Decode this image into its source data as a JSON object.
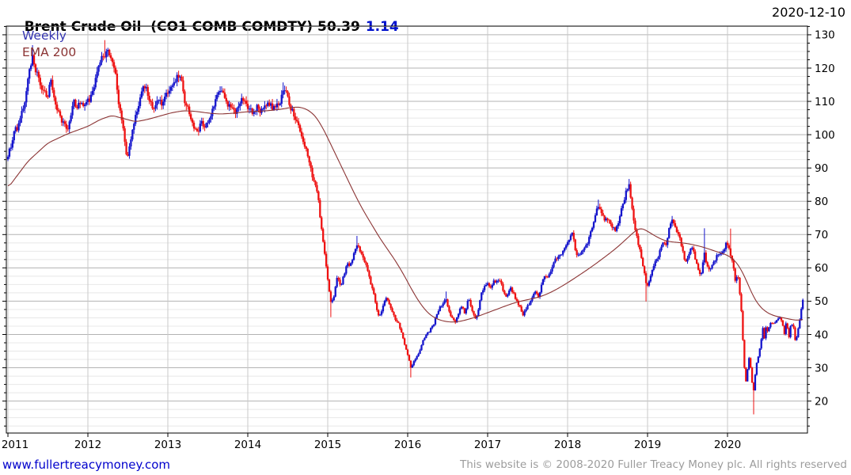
{
  "header": {
    "title": "Brent Crude Oil  (CO1 COMB COMDTY)",
    "price": "50.39",
    "change": "1.14",
    "date": "2020-12-10"
  },
  "legend": {
    "interval": "Weekly",
    "overlay": "EMA 200"
  },
  "footer": {
    "site": "www.fullertreacymoney.com",
    "copyright": "This website is © 2008-2020 Fuller Treacy Money plc. All rights reserved"
  },
  "colors": {
    "background": "#ffffff",
    "up_candle": "#1414cc",
    "down_candle": "#ee1111",
    "ema_line": "#8b3434",
    "grid_major": "#b3b3b3",
    "grid_minor": "#e8e8e8",
    "grid_year": "#c9c9c9",
    "axis_frame": "#000000",
    "tick_label": "#000000",
    "title_text": "#000000",
    "change_text": "#0011cc",
    "legend_weekly": "#3535b2",
    "legend_ema": "#8b3434",
    "link_text": "#0000cc",
    "copyright_text": "#9c9c9c"
  },
  "chart_data": {
    "type": "candlestick",
    "title": "Brent Crude Oil (CO1 COMB COMDTY)",
    "interval": "Weekly",
    "overlay": "EMA 200",
    "as_of_date": "2020-12-10",
    "last_close": 50.39,
    "change": 1.14,
    "xlabel": "",
    "ylabel": "",
    "x_ticks": [
      2011,
      2012,
      2013,
      2014,
      2015,
      2016,
      2017,
      2018,
      2019,
      2020
    ],
    "y_ticks": [
      20,
      30,
      40,
      50,
      60,
      70,
      80,
      90,
      100,
      110,
      120,
      130
    ],
    "y_minor_step": 2.5,
    "x_domain": [
      2010.98,
      2021.0
    ],
    "y_domain": [
      10.4,
      132.6
    ],
    "weeks_per_year": 52,
    "series_start": 2011.0,
    "series_end": 2020.945,
    "close_anchors": [
      [
        2011.0,
        93.5
      ],
      [
        2011.04,
        97
      ],
      [
        2011.08,
        100
      ],
      [
        2011.12,
        101.5
      ],
      [
        2011.16,
        103.5
      ],
      [
        2011.2,
        108
      ],
      [
        2011.24,
        114
      ],
      [
        2011.28,
        120
      ],
      [
        2011.31,
        123.5
      ],
      [
        2011.34,
        121
      ],
      [
        2011.38,
        117
      ],
      [
        2011.42,
        112.5
      ],
      [
        2011.46,
        114.5
      ],
      [
        2011.5,
        112
      ],
      [
        2011.54,
        116.5
      ],
      [
        2011.58,
        112
      ],
      [
        2011.62,
        108
      ],
      [
        2011.66,
        106
      ],
      [
        2011.7,
        104
      ],
      [
        2011.74,
        100.5
      ],
      [
        2011.78,
        104
      ],
      [
        2011.82,
        109
      ],
      [
        2011.86,
        106
      ],
      [
        2011.9,
        108.5
      ],
      [
        2011.94,
        107
      ],
      [
        2011.98,
        107.8
      ],
      [
        2012.02,
        110
      ],
      [
        2012.06,
        113
      ],
      [
        2012.1,
        117.5
      ],
      [
        2012.14,
        120
      ],
      [
        2012.18,
        123
      ],
      [
        2012.22,
        125.3
      ],
      [
        2012.26,
        123.5
      ],
      [
        2012.3,
        121
      ],
      [
        2012.34,
        118.5
      ],
      [
        2012.38,
        110
      ],
      [
        2012.42,
        104
      ],
      [
        2012.46,
        97
      ],
      [
        2012.49,
        91.5
      ],
      [
        2012.53,
        97.5
      ],
      [
        2012.57,
        102
      ],
      [
        2012.61,
        107
      ],
      [
        2012.65,
        112.5
      ],
      [
        2012.69,
        115
      ],
      [
        2012.73,
        114
      ],
      [
        2012.77,
        111.5
      ],
      [
        2012.81,
        109
      ],
      [
        2012.85,
        108.5
      ],
      [
        2012.89,
        110.5
      ],
      [
        2012.93,
        109.5
      ],
      [
        2012.97,
        110
      ],
      [
        2013.01,
        111.5
      ],
      [
        2013.05,
        114
      ],
      [
        2013.09,
        117
      ],
      [
        2013.13,
        118.3
      ],
      [
        2013.17,
        115.5
      ],
      [
        2013.21,
        110
      ],
      [
        2013.25,
        107.5
      ],
      [
        2013.29,
        104
      ],
      [
        2013.33,
        99.5
      ],
      [
        2013.37,
        101
      ],
      [
        2013.41,
        103.5
      ],
      [
        2013.45,
        101
      ],
      [
        2013.49,
        103
      ],
      [
        2013.53,
        106
      ],
      [
        2013.57,
        108
      ],
      [
        2013.61,
        110
      ],
      [
        2013.65,
        113.5
      ],
      [
        2013.69,
        115
      ],
      [
        2013.73,
        110.5
      ],
      [
        2013.77,
        108.5
      ],
      [
        2013.81,
        106.5
      ],
      [
        2013.85,
        105.5
      ],
      [
        2013.89,
        107.5
      ],
      [
        2013.93,
        110
      ],
      [
        2013.97,
        111
      ],
      [
        2014.01,
        107.5
      ],
      [
        2014.05,
        106.5
      ],
      [
        2014.09,
        109
      ],
      [
        2014.13,
        108.5
      ],
      [
        2014.17,
        107
      ],
      [
        2014.21,
        107.5
      ],
      [
        2014.25,
        109.5
      ],
      [
        2014.29,
        108
      ],
      [
        2014.33,
        107.5
      ],
      [
        2014.37,
        109.5
      ],
      [
        2014.41,
        111
      ],
      [
        2014.45,
        113
      ],
      [
        2014.49,
        111.5
      ],
      [
        2014.53,
        109
      ],
      [
        2014.57,
        106.5
      ],
      [
        2014.61,
        103
      ],
      [
        2014.65,
        101.5
      ],
      [
        2014.69,
        98.5
      ],
      [
        2014.73,
        95.5
      ],
      [
        2014.77,
        92.5
      ],
      [
        2014.81,
        88
      ],
      [
        2014.85,
        83.5
      ],
      [
        2014.89,
        78
      ],
      [
        2014.93,
        70
      ],
      [
        2014.97,
        61.5
      ],
      [
        2015.01,
        53
      ],
      [
        2015.04,
        49
      ],
      [
        2015.08,
        51
      ],
      [
        2015.12,
        57.5
      ],
      [
        2015.16,
        54.5
      ],
      [
        2015.2,
        58
      ],
      [
        2015.24,
        61
      ],
      [
        2015.28,
        60
      ],
      [
        2015.32,
        63.5
      ],
      [
        2015.36,
        66
      ],
      [
        2015.4,
        64.5
      ],
      [
        2015.44,
        62.5
      ],
      [
        2015.48,
        61
      ],
      [
        2015.52,
        57
      ],
      [
        2015.56,
        53.5
      ],
      [
        2015.6,
        49
      ],
      [
        2015.64,
        44.8
      ],
      [
        2015.68,
        47.5
      ],
      [
        2015.72,
        51.5
      ],
      [
        2015.76,
        49
      ],
      [
        2015.8,
        47.5
      ],
      [
        2015.84,
        44.5
      ],
      [
        2015.88,
        43.5
      ],
      [
        2015.92,
        41
      ],
      [
        2015.96,
        37.5
      ],
      [
        2016.0,
        34
      ],
      [
        2016.04,
        29.5
      ],
      [
        2016.08,
        32.5
      ],
      [
        2016.12,
        34
      ],
      [
        2016.16,
        35.5
      ],
      [
        2016.2,
        38.5
      ],
      [
        2016.24,
        40
      ],
      [
        2016.28,
        41.5
      ],
      [
        2016.32,
        43
      ],
      [
        2016.36,
        45.5
      ],
      [
        2016.4,
        47.5
      ],
      [
        2016.44,
        49.5
      ],
      [
        2016.48,
        50
      ],
      [
        2016.52,
        47
      ],
      [
        2016.56,
        44.5
      ],
      [
        2016.6,
        42.5
      ],
      [
        2016.64,
        46.5
      ],
      [
        2016.68,
        49
      ],
      [
        2016.72,
        46.5
      ],
      [
        2016.76,
        50.5
      ],
      [
        2016.8,
        48
      ],
      [
        2016.84,
        45
      ],
      [
        2016.88,
        46.5
      ],
      [
        2016.92,
        52
      ],
      [
        2016.96,
        54.5
      ],
      [
        2017.0,
        56.5
      ],
      [
        2017.04,
        55
      ],
      [
        2017.08,
        56
      ],
      [
        2017.12,
        55.5
      ],
      [
        2017.16,
        56
      ],
      [
        2017.2,
        52
      ],
      [
        2017.24,
        51
      ],
      [
        2017.28,
        54.5
      ],
      [
        2017.32,
        52.5
      ],
      [
        2017.36,
        50
      ],
      [
        2017.4,
        48.5
      ],
      [
        2017.44,
        46
      ],
      [
        2017.48,
        47.5
      ],
      [
        2017.52,
        49
      ],
      [
        2017.56,
        51.5
      ],
      [
        2017.6,
        52.5
      ],
      [
        2017.64,
        51.5
      ],
      [
        2017.68,
        55
      ],
      [
        2017.72,
        57
      ],
      [
        2017.76,
        56.5
      ],
      [
        2017.8,
        59
      ],
      [
        2017.84,
        61.5
      ],
      [
        2017.88,
        63
      ],
      [
        2017.92,
        63.5
      ],
      [
        2017.96,
        64.5
      ],
      [
        2018.0,
        67
      ],
      [
        2018.04,
        69
      ],
      [
        2018.07,
        70
      ],
      [
        2018.11,
        63
      ],
      [
        2018.15,
        64
      ],
      [
        2018.19,
        66
      ],
      [
        2018.23,
        67.5
      ],
      [
        2018.27,
        69.5
      ],
      [
        2018.31,
        72
      ],
      [
        2018.35,
        75.5
      ],
      [
        2018.39,
        78.5
      ],
      [
        2018.43,
        76.5
      ],
      [
        2018.47,
        74.5
      ],
      [
        2018.51,
        75.5
      ],
      [
        2018.55,
        73.5
      ],
      [
        2018.59,
        71.5
      ],
      [
        2018.63,
        74
      ],
      [
        2018.67,
        77
      ],
      [
        2018.71,
        79
      ],
      [
        2018.74,
        82.5
      ],
      [
        2018.77,
        84
      ],
      [
        2018.81,
        77.5
      ],
      [
        2018.85,
        72
      ],
      [
        2018.89,
        67
      ],
      [
        2018.93,
        62
      ],
      [
        2018.96,
        58
      ],
      [
        2018.99,
        53.5
      ],
      [
        2019.03,
        57.5
      ],
      [
        2019.07,
        61
      ],
      [
        2019.11,
        62
      ],
      [
        2019.15,
        64.5
      ],
      [
        2019.19,
        66.5
      ],
      [
        2019.23,
        67
      ],
      [
        2019.27,
        71.5
      ],
      [
        2019.31,
        74
      ],
      [
        2019.35,
        72
      ],
      [
        2019.39,
        70.5
      ],
      [
        2019.43,
        66
      ],
      [
        2019.47,
        62
      ],
      [
        2019.51,
        64.5
      ],
      [
        2019.55,
        66.5
      ],
      [
        2019.59,
        63
      ],
      [
        2019.63,
        59.5
      ],
      [
        2019.67,
        58
      ],
      [
        2019.71,
        64.5
      ],
      [
        2019.75,
        60
      ],
      [
        2019.79,
        59
      ],
      [
        2019.83,
        62
      ],
      [
        2019.87,
        63.5
      ],
      [
        2019.91,
        64
      ],
      [
        2019.95,
        66.5
      ],
      [
        2019.99,
        68
      ],
      [
        2020.03,
        65
      ],
      [
        2020.07,
        60.5
      ],
      [
        2020.1,
        54.5
      ],
      [
        2020.13,
        57.5
      ],
      [
        2020.16,
        50.5
      ],
      [
        2020.18,
        45.3
      ],
      [
        2020.2,
        33.8
      ],
      [
        2020.22,
        27
      ],
      [
        2020.24,
        24.9
      ],
      [
        2020.26,
        34.1
      ],
      [
        2020.28,
        31.5
      ],
      [
        2020.3,
        28.1
      ],
      [
        2020.32,
        21.4
      ],
      [
        2020.34,
        26.4
      ],
      [
        2020.36,
        30.9
      ],
      [
        2020.38,
        32.5
      ],
      [
        2020.4,
        35.1
      ],
      [
        2020.42,
        37.8
      ],
      [
        2020.44,
        42.3
      ],
      [
        2020.46,
        38.7
      ],
      [
        2020.48,
        42.2
      ],
      [
        2020.5,
        41
      ],
      [
        2020.54,
        43.4
      ],
      [
        2020.58,
        43.3
      ],
      [
        2020.62,
        44.4
      ],
      [
        2020.66,
        45.1
      ],
      [
        2020.69,
        42.7
      ],
      [
        2020.71,
        39.8
      ],
      [
        2020.73,
        43.2
      ],
      [
        2020.75,
        41.9
      ],
      [
        2020.77,
        39.3
      ],
      [
        2020.79,
        42.9
      ],
      [
        2020.81,
        42.9
      ],
      [
        2020.83,
        41.8
      ],
      [
        2020.85,
        37.5
      ],
      [
        2020.87,
        39.5
      ],
      [
        2020.89,
        42.8
      ],
      [
        2020.91,
        45
      ],
      [
        2020.925,
        48.2
      ],
      [
        2020.94,
        49.3
      ],
      [
        2020.945,
        50.39
      ]
    ],
    "wick_events": [
      [
        2011.31,
        "high",
        126.9
      ],
      [
        2012.22,
        "high",
        128.4
      ],
      [
        2013.13,
        "high",
        119.2
      ],
      [
        2014.45,
        "high",
        115.7
      ],
      [
        2015.04,
        "low",
        45.2
      ],
      [
        2015.36,
        "high",
        69.6
      ],
      [
        2016.04,
        "low",
        27.1
      ],
      [
        2016.48,
        "high",
        52.9
      ],
      [
        2018.07,
        "high",
        71.3
      ],
      [
        2018.39,
        "high",
        80.5
      ],
      [
        2018.77,
        "high",
        86.7
      ],
      [
        2018.99,
        "low",
        49.9
      ],
      [
        2019.31,
        "high",
        75.6
      ],
      [
        2019.71,
        "high",
        71.9
      ],
      [
        2020.03,
        "high",
        71.8
      ],
      [
        2020.32,
        "low",
        16.0
      ]
    ],
    "ema_anchors": [
      [
        2011.0,
        84
      ],
      [
        2011.25,
        92
      ],
      [
        2011.5,
        97.5
      ],
      [
        2011.75,
        100.3
      ],
      [
        2012.0,
        102.5
      ],
      [
        2012.15,
        104.5
      ],
      [
        2012.3,
        105.8
      ],
      [
        2012.45,
        104.8
      ],
      [
        2012.6,
        103.9
      ],
      [
        2012.75,
        104.6
      ],
      [
        2012.9,
        105.6
      ],
      [
        2013.05,
        106.6
      ],
      [
        2013.2,
        107.2
      ],
      [
        2013.35,
        107
      ],
      [
        2013.5,
        106.5
      ],
      [
        2013.65,
        106.2
      ],
      [
        2013.8,
        106.4
      ],
      [
        2013.95,
        106.8
      ],
      [
        2014.1,
        107
      ],
      [
        2014.25,
        107.2
      ],
      [
        2014.4,
        107.6
      ],
      [
        2014.55,
        108.2
      ],
      [
        2014.65,
        108.3
      ],
      [
        2014.75,
        107.5
      ],
      [
        2014.85,
        105.5
      ],
      [
        2014.95,
        101.5
      ],
      [
        2015.05,
        96.5
      ],
      [
        2015.15,
        91.5
      ],
      [
        2015.25,
        86.5
      ],
      [
        2015.35,
        81.5
      ],
      [
        2015.45,
        77
      ],
      [
        2015.55,
        73
      ],
      [
        2015.65,
        69
      ],
      [
        2015.75,
        65.5
      ],
      [
        2015.85,
        62
      ],
      [
        2015.95,
        58
      ],
      [
        2016.05,
        53.5
      ],
      [
        2016.15,
        49.5
      ],
      [
        2016.25,
        46.5
      ],
      [
        2016.35,
        44.8
      ],
      [
        2016.45,
        44
      ],
      [
        2016.55,
        43.7
      ],
      [
        2016.65,
        43.9
      ],
      [
        2016.75,
        44.5
      ],
      [
        2016.85,
        45.2
      ],
      [
        2016.95,
        46.1
      ],
      [
        2017.05,
        47
      ],
      [
        2017.15,
        47.9
      ],
      [
        2017.25,
        48.8
      ],
      [
        2017.35,
        49.6
      ],
      [
        2017.45,
        50.2
      ],
      [
        2017.55,
        50.7
      ],
      [
        2017.65,
        51.3
      ],
      [
        2017.75,
        52.2
      ],
      [
        2017.85,
        53.4
      ],
      [
        2017.95,
        54.8
      ],
      [
        2018.05,
        56.3
      ],
      [
        2018.15,
        57.9
      ],
      [
        2018.25,
        59.5
      ],
      [
        2018.35,
        61.2
      ],
      [
        2018.45,
        63
      ],
      [
        2018.55,
        64.8
      ],
      [
        2018.65,
        66.8
      ],
      [
        2018.75,
        69
      ],
      [
        2018.85,
        71.2
      ],
      [
        2018.92,
        72
      ],
      [
        2019.0,
        71
      ],
      [
        2019.1,
        69.5
      ],
      [
        2019.2,
        68.3
      ],
      [
        2019.3,
        67.8
      ],
      [
        2019.4,
        67.6
      ],
      [
        2019.5,
        67.3
      ],
      [
        2019.6,
        66.8
      ],
      [
        2019.7,
        66.2
      ],
      [
        2019.8,
        65.4
      ],
      [
        2019.9,
        64.6
      ],
      [
        2020.0,
        63.8
      ],
      [
        2020.08,
        62.5
      ],
      [
        2020.16,
        60
      ],
      [
        2020.24,
        56
      ],
      [
        2020.32,
        51.5
      ],
      [
        2020.4,
        48.5
      ],
      [
        2020.48,
        46.8
      ],
      [
        2020.56,
        45.8
      ],
      [
        2020.64,
        45.3
      ],
      [
        2020.72,
        44.9
      ],
      [
        2020.8,
        44.5
      ],
      [
        2020.88,
        44.2
      ],
      [
        2020.945,
        44.6
      ]
    ]
  }
}
